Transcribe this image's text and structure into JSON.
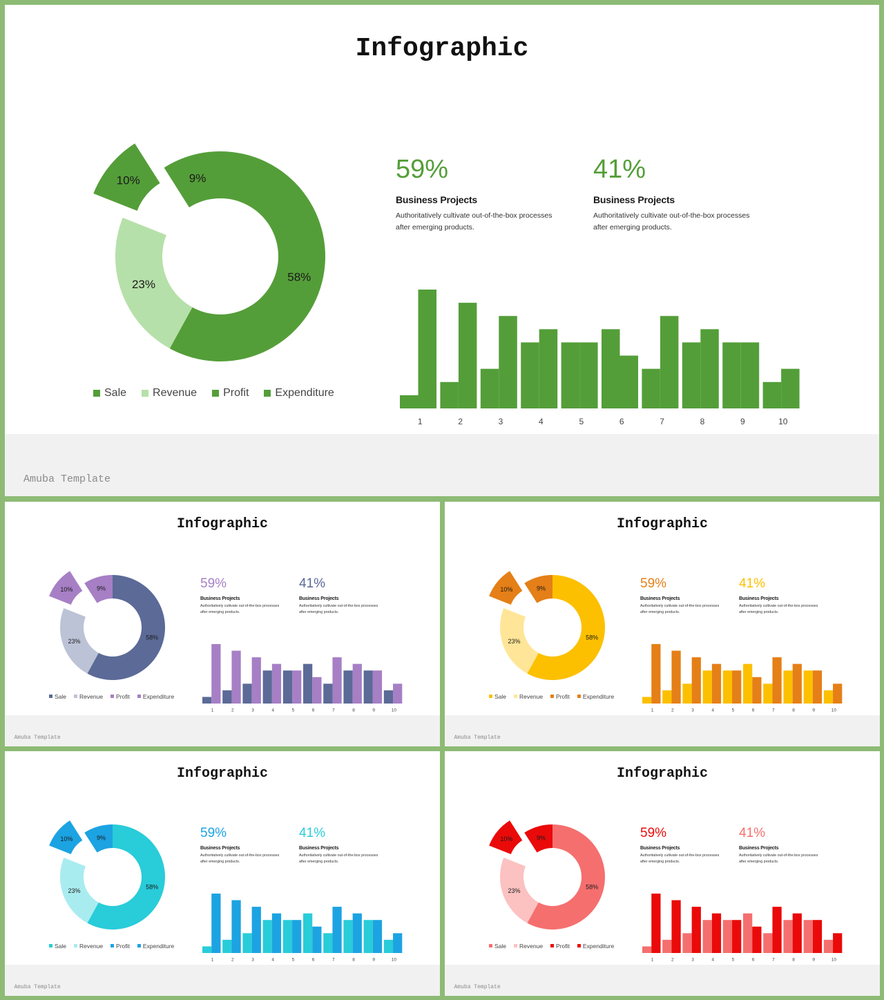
{
  "slides": [
    {
      "title": "Infographic",
      "footer": "Amuba Template",
      "colors": {
        "sale": "#549e39",
        "revenue": "#b6e0a9",
        "profit": "#549e39",
        "expenditure": "#549e39",
        "stat1": "#549e39",
        "stat2": "#549e39"
      },
      "stats": [
        {
          "value": "59%",
          "heading": "Business Projects",
          "desc1": "Authoritatively cultivate out-of-the-box processes",
          "desc2": "after emerging products."
        },
        {
          "value": "41%",
          "heading": "Business Projects",
          "desc1": "Authoritatively cultivate out-of-the-box processes",
          "desc2": "after emerging products."
        }
      ]
    },
    {
      "title": "Infographic",
      "footer": "Amuba Template",
      "colors": {
        "sale": "#5b6a97",
        "revenue": "#bcc3d6",
        "profit": "#a67fc5",
        "expenditure": "#a67fc5",
        "stat1": "#a67fc5",
        "stat2": "#5b6a97"
      },
      "stats": [
        {
          "value": "59%",
          "heading": "Business Projects",
          "desc1": "Authoritatively cultivate out-of-the-box processes",
          "desc2": "after emerging products."
        },
        {
          "value": "41%",
          "heading": "Business Projects",
          "desc1": "Authoritatively cultivate out-of-the-box processes",
          "desc2": "after emerging products."
        }
      ]
    },
    {
      "title": "Infographic",
      "footer": "Amuba Template",
      "colors": {
        "sale": "#fcc000",
        "revenue": "#ffe597",
        "profit": "#e57f17",
        "expenditure": "#e57f17",
        "stat1": "#e57f17",
        "stat2": "#fcc000"
      },
      "stats": [
        {
          "value": "59%",
          "heading": "Business Projects",
          "desc1": "Authoritatively cultivate out-of-the-box processes",
          "desc2": "after emerging products."
        },
        {
          "value": "41%",
          "heading": "Business Projects",
          "desc1": "Authoritatively cultivate out-of-the-box processes",
          "desc2": "after emerging products."
        }
      ]
    },
    {
      "title": "Infographic",
      "footer": "Amuba Template",
      "colors": {
        "sale": "#29ccd9",
        "revenue": "#a9ecf0",
        "profit": "#1ca3e2",
        "expenditure": "#1ca3e2",
        "stat1": "#1ca3e2",
        "stat2": "#29ccd9"
      },
      "stats": [
        {
          "value": "59%",
          "heading": "Business Projects",
          "desc1": "Authoritatively cultivate out-of-the-box processes",
          "desc2": "after emerging products."
        },
        {
          "value": "41%",
          "heading": "Business Projects",
          "desc1": "Authoritatively cultivate out-of-the-box processes",
          "desc2": "after emerging products."
        }
      ]
    },
    {
      "title": "Infographic",
      "footer": "Amuba Template",
      "colors": {
        "sale": "#f56f6f",
        "revenue": "#fcc1c1",
        "profit": "#ea0a0a",
        "expenditure": "#ea0a0a",
        "stat1": "#ea0a0a",
        "stat2": "#f56f6f"
      },
      "stats": [
        {
          "value": "59%",
          "heading": "Business Projects",
          "desc1": "Authoritatively cultivate out-of-the-box processes",
          "desc2": "after emerging products."
        },
        {
          "value": "41%",
          "heading": "Business Projects",
          "desc1": "Authoritatively cultivate out-of-the-box processes",
          "desc2": "after emerging products."
        }
      ]
    }
  ],
  "chart_data": [
    {
      "type": "pie",
      "variant": "donut",
      "categories": [
        "Sale",
        "Revenue",
        "Profit",
        "Expenditure"
      ],
      "values": [
        58,
        23,
        10,
        9
      ],
      "labels": [
        "58%",
        "23%",
        "10%",
        "9%"
      ],
      "exploded": [
        "Profit"
      ],
      "legend": "bottom"
    },
    {
      "type": "bar",
      "categories": [
        "1",
        "2",
        "3",
        "4",
        "5",
        "6",
        "7",
        "8",
        "9",
        "10"
      ],
      "series": [
        {
          "values": [
            1,
            2,
            3,
            5,
            5,
            6,
            3,
            5,
            5,
            2
          ]
        },
        {
          "values": [
            9,
            8,
            7,
            6,
            5,
            4,
            7,
            6,
            5,
            3
          ]
        }
      ],
      "ylim": [
        0,
        9
      ],
      "grid": false,
      "legend": "none"
    }
  ]
}
